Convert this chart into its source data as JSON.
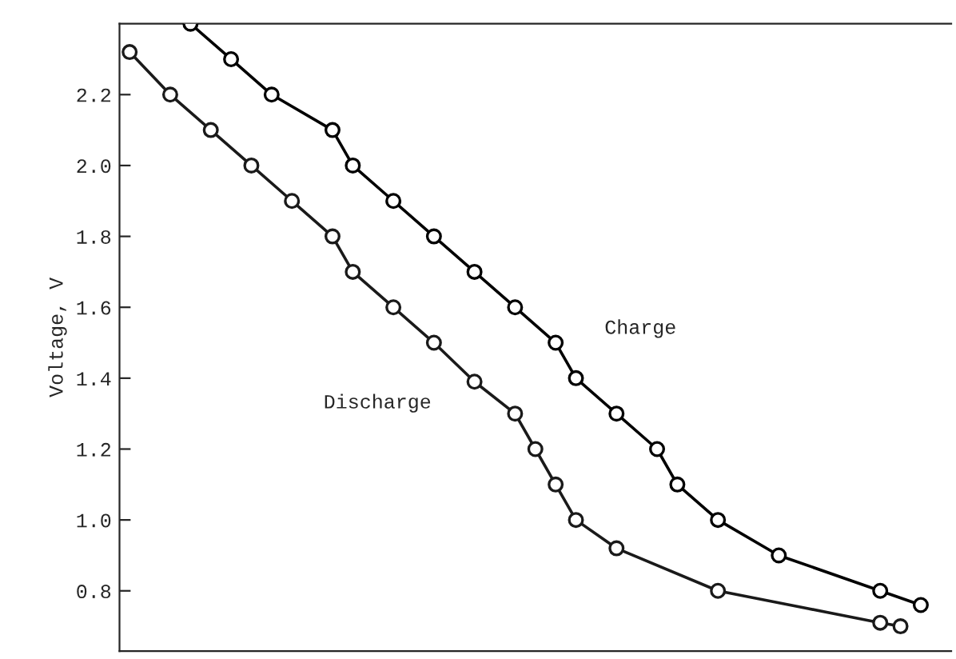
{
  "chart_data": {
    "type": "line",
    "ylabel": "Voltage, V",
    "tick_labels": "y",
    "grid": false,
    "legend": false,
    "marker": "circle",
    "line_style": "solid",
    "categories": [
      null,
      null,
      null,
      null,
      null,
      null,
      null,
      null,
      null,
      null,
      null,
      null,
      null,
      null,
      null,
      null,
      null,
      null,
      null,
      null,
      null,
      null,
      null,
      null,
      null,
      null,
      null,
      null,
      null,
      null,
      null,
      null,
      null,
      null,
      null,
      null,
      null,
      null,
      null,
      null,
      null
    ],
    "ylim": [
      0.63,
      2.4
    ],
    "yticks": [
      0.8,
      {
        "value": 1,
        "label": "1.0"
      },
      1.2,
      1.4,
      1.6,
      1.8,
      {
        "value": 2,
        "label": "2.0"
      },
      2.2
    ],
    "series": [
      {
        "name": "Charge",
        "color": "#000000",
        "values": [
          null,
          null,
          null,
          2.4,
          null,
          2.3,
          null,
          2.2,
          null,
          null,
          2.1,
          2.0,
          null,
          1.9,
          null,
          1.8,
          null,
          1.7,
          null,
          1.6,
          null,
          1.5,
          1.4,
          null,
          1.3,
          null,
          1.2,
          1.1,
          null,
          1.0,
          null,
          null,
          0.9,
          null,
          null,
          null,
          null,
          0.8,
          null,
          0.76,
          null
        ]
      },
      {
        "name": "Discharge",
        "color": "#1a1a1a",
        "values": [
          2.32,
          null,
          2.2,
          null,
          2.1,
          null,
          2.0,
          null,
          1.9,
          null,
          1.8,
          1.7,
          null,
          1.6,
          null,
          1.5,
          null,
          1.39,
          null,
          1.3,
          1.2,
          1.1,
          1.0,
          null,
          0.92,
          null,
          null,
          null,
          null,
          0.8,
          null,
          null,
          null,
          null,
          null,
          null,
          null,
          0.71,
          0.7,
          null,
          null
        ]
      }
    ]
  }
}
